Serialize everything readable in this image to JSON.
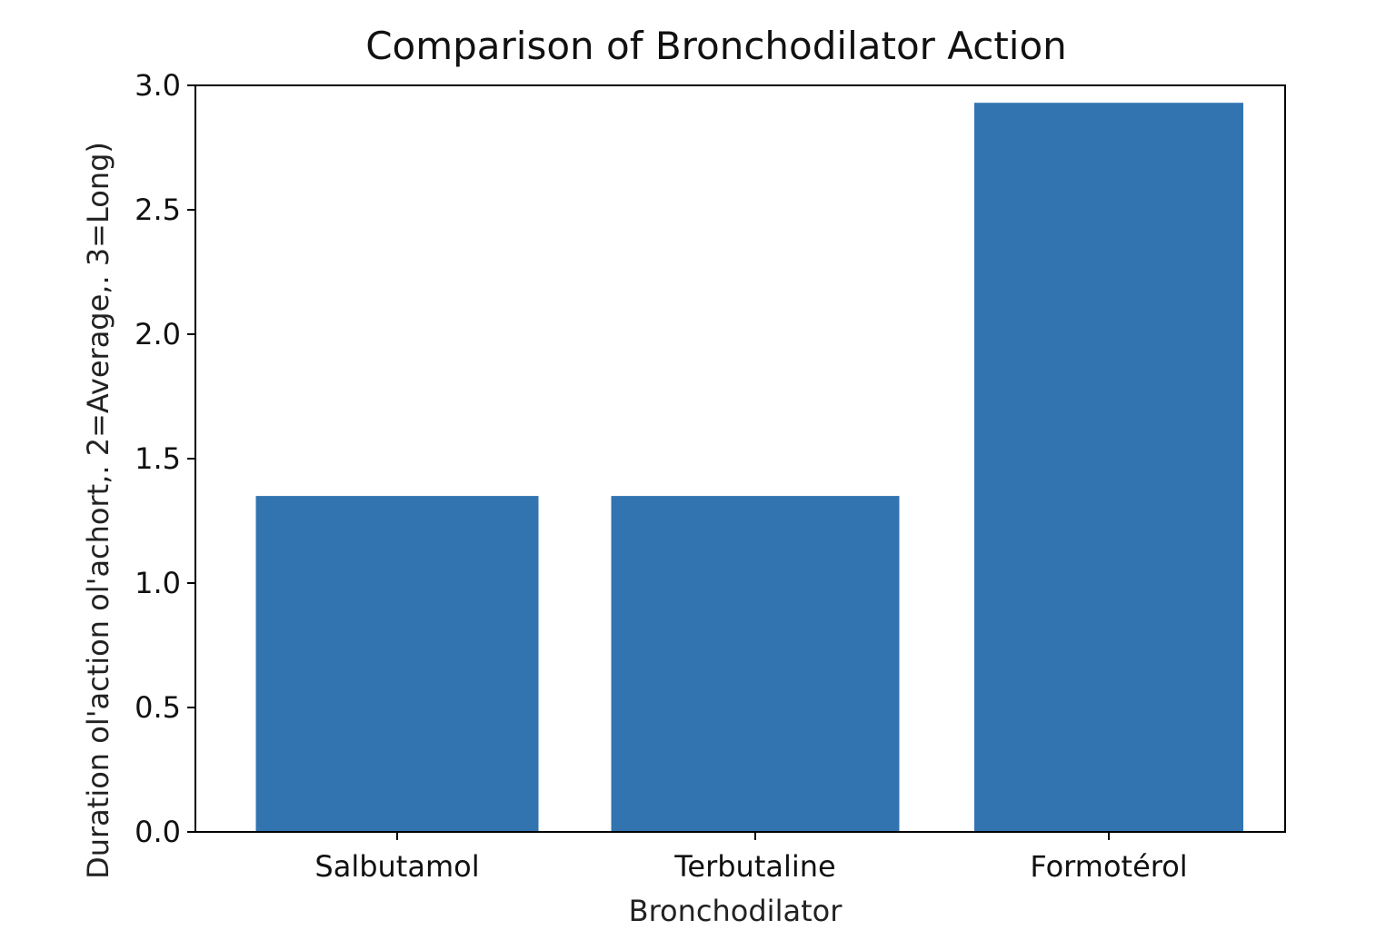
{
  "chart_data": {
    "type": "bar",
    "title": "Comparison of Bronchodilator Action",
    "xlabel": "Bronchodilator",
    "ylabel": "Duration ol'action ol'achort,. 2=Average,. 3=Long)",
    "categories": [
      "Salbutamol",
      "Terbutaline",
      "Formotérol"
    ],
    "values": [
      1.35,
      1.35,
      2.93
    ],
    "ylim": [
      0,
      3.0
    ],
    "yticks": [
      0.0,
      0.5,
      1.0,
      1.5,
      2.0,
      2.5,
      3.0
    ],
    "ytick_labels": [
      "0.0",
      "0.5",
      "1.0",
      "1.5",
      "2.0",
      "2.5",
      "3.0"
    ],
    "bar_color": "#3274b0",
    "grid": false,
    "legend": "none"
  }
}
